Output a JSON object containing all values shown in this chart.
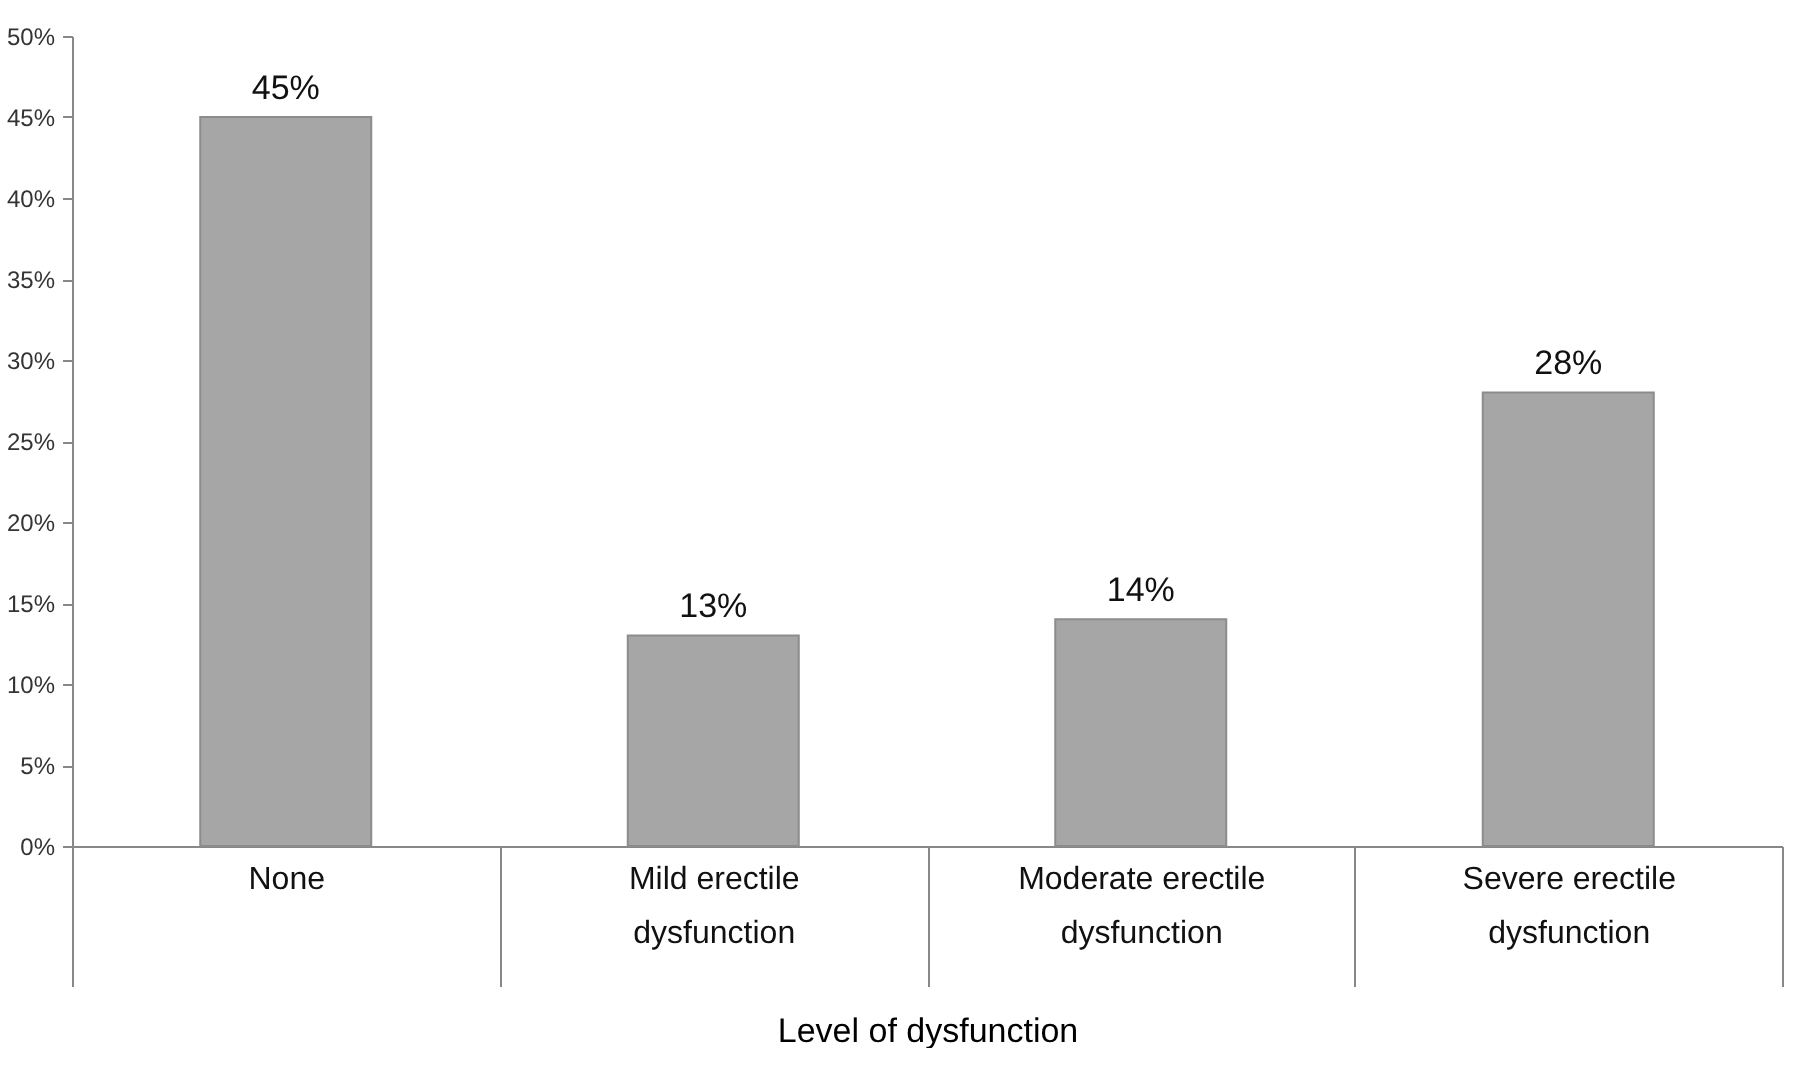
{
  "chart_data": {
    "type": "bar",
    "xlabel": "Level of dysfunction",
    "categories": [
      "None",
      "Mild erectile dysfunction",
      "Moderate erectile dysfunction",
      "Severe erectile dysfunction"
    ],
    "values": [
      45,
      13,
      14,
      28
    ],
    "value_labels": [
      "45%",
      "13%",
      "14%",
      "28%"
    ],
    "color": "#a6a6a6",
    "ylim": [
      0,
      50
    ],
    "yticks": [
      {
        "value": 0,
        "label": "0%"
      },
      {
        "value": 5,
        "label": "5%"
      },
      {
        "value": 10,
        "label": "10%"
      },
      {
        "value": 15,
        "label": "15%"
      },
      {
        "value": 20,
        "label": "20%"
      },
      {
        "value": 25,
        "label": "25%"
      },
      {
        "value": 30,
        "label": "30%"
      },
      {
        "value": 35,
        "label": "35%"
      },
      {
        "value": 40,
        "label": "40%"
      },
      {
        "value": 45,
        "label": "45%"
      },
      {
        "value": 50,
        "label": "50%"
      }
    ],
    "grid": false
  }
}
